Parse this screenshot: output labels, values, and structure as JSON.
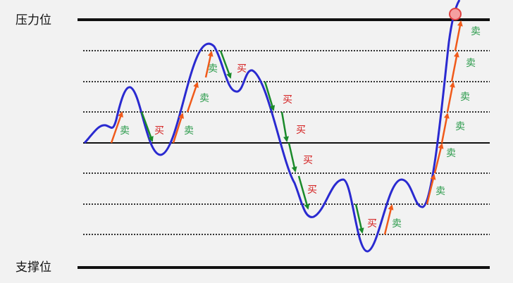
{
  "levels": {
    "resistance": "压力位",
    "support": "支撑位"
  },
  "sell_labels": [
    "卖",
    "卖",
    "卖",
    "卖",
    "卖",
    "卖",
    "卖",
    "卖",
    "卖",
    "卖",
    "卖"
  ],
  "buy_labels": [
    "买",
    "买",
    "买",
    "买",
    "买",
    "买",
    "买"
  ]
}
